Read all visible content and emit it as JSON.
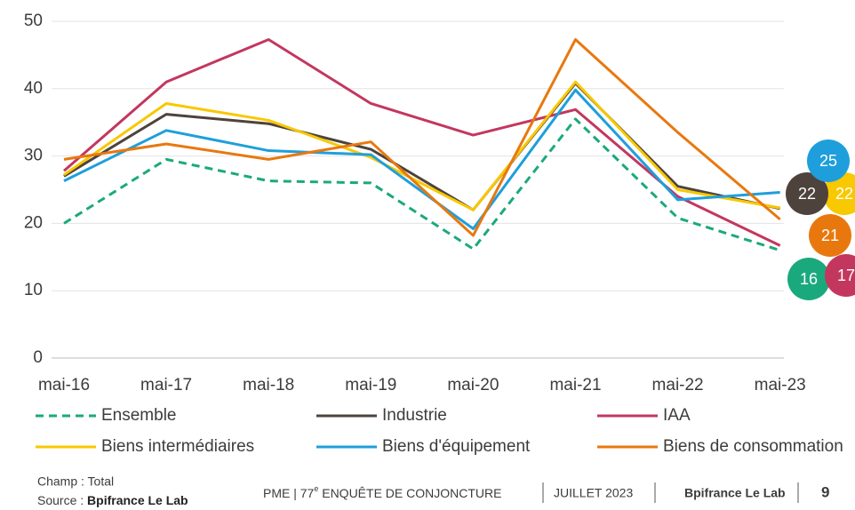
{
  "chart_data": {
    "type": "line",
    "categories": [
      "mai-16",
      "mai-17",
      "mai-18",
      "mai-19",
      "mai-20",
      "mai-21",
      "mai-22",
      "mai-23"
    ],
    "ylim": [
      0,
      50
    ],
    "yticks": [
      0,
      10,
      20,
      30,
      40,
      50
    ],
    "grid": true,
    "series": [
      {
        "name": "Ensemble",
        "color": "#1aa97c",
        "dashed": true,
        "values": [
          20,
          29.5,
          26.3,
          26,
          16.2,
          35.5,
          20.8,
          16
        ],
        "value_labels": [
          null,
          null,
          null,
          null,
          null,
          null,
          null,
          "16"
        ]
      },
      {
        "name": "Industrie",
        "color": "#4e423c",
        "values": [
          27,
          36.2,
          34.8,
          31,
          22,
          40.8,
          25.5,
          22.2
        ],
        "value_labels": [
          null,
          null,
          null,
          null,
          null,
          null,
          null,
          "22"
        ]
      },
      {
        "name": "IAA",
        "color": "#c3375f",
        "values": [
          27.8,
          41,
          47.3,
          37.8,
          33.1,
          36.9,
          24,
          16.7
        ],
        "value_labels": [
          null,
          null,
          null,
          null,
          null,
          null,
          null,
          "17"
        ]
      },
      {
        "name": "Biens intermédiaires",
        "color": "#f8c800",
        "values": [
          27.2,
          37.8,
          35.3,
          29.8,
          22,
          41,
          25,
          22.3
        ],
        "value_labels": [
          null,
          null,
          null,
          null,
          null,
          null,
          null,
          "22"
        ]
      },
      {
        "name": "Biens d'équipement",
        "color": "#1e9fdb",
        "values": [
          26.3,
          33.8,
          30.8,
          30.2,
          19.2,
          39.8,
          23.5,
          24.6
        ],
        "value_labels": [
          null,
          null,
          null,
          null,
          null,
          null,
          null,
          "25"
        ]
      },
      {
        "name": "Biens de consommation",
        "color": "#e8780e",
        "values": [
          29.5,
          31.8,
          29.5,
          32.1,
          18.2,
          47.3,
          33.5,
          20.6
        ],
        "value_labels": [
          null,
          null,
          null,
          null,
          null,
          null,
          null,
          "21"
        ]
      }
    ]
  },
  "footer": {
    "champ": "Champ : Total",
    "source_label": "Source :",
    "source": "Bpifrance Le Lab",
    "publication": "PME | 77",
    "publication_sup": "e",
    "publication_rest": " ENQUÊTE DE CONJONCTURE",
    "date": "JUILLET 2023",
    "brand": "Bpifrance Le Lab",
    "page": "9"
  }
}
